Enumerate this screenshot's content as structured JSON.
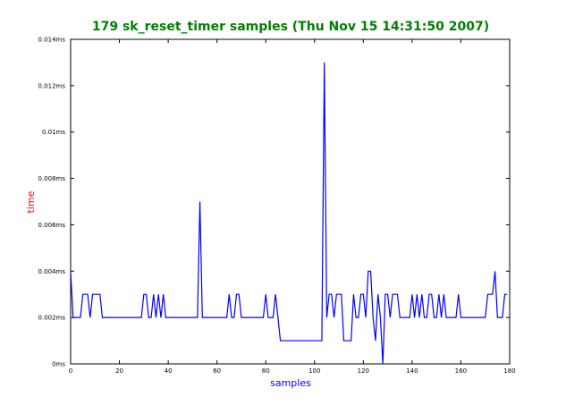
{
  "chart_data": {
    "type": "line",
    "title": "179 sk_reset_timer samples (Thu Nov 15 14:31:50 2007)",
    "xlabel": "samples",
    "ylabel": "time",
    "xlim": [
      0,
      180
    ],
    "ylim": [
      0,
      0.014
    ],
    "x_ticks": [
      0,
      20,
      40,
      60,
      80,
      100,
      120,
      140,
      160,
      180
    ],
    "x_tick_labels": [
      "0",
      "20",
      "40",
      "60",
      "80",
      "100",
      "120",
      "140",
      "160",
      "180"
    ],
    "y_ticks": [
      0,
      0.002,
      0.004,
      0.006,
      0.008,
      0.01,
      0.012,
      0.014
    ],
    "y_tick_labels": [
      "0ms",
      "0.002ms",
      "0.004ms",
      "0.006ms",
      "0.008ms",
      "0.01ms",
      "0.012ms",
      "0.014ms"
    ],
    "grid": false,
    "series": [
      {
        "color": "#0000ff",
        "values": [
          0.004,
          0.002,
          0.002,
          0.002,
          0.002,
          0.003,
          0.003,
          0.003,
          0.002,
          0.003,
          0.003,
          0.003,
          0.003,
          0.002,
          0.002,
          0.002,
          0.002,
          0.002,
          0.002,
          0.002,
          0.002,
          0.002,
          0.002,
          0.002,
          0.002,
          0.002,
          0.002,
          0.002,
          0.002,
          0.002,
          0.003,
          0.003,
          0.002,
          0.002,
          0.003,
          0.002,
          0.003,
          0.002,
          0.003,
          0.002,
          0.002,
          0.002,
          0.002,
          0.002,
          0.002,
          0.002,
          0.002,
          0.002,
          0.002,
          0.002,
          0.002,
          0.002,
          0.002,
          0.007,
          0.002,
          0.002,
          0.002,
          0.002,
          0.002,
          0.002,
          0.002,
          0.002,
          0.002,
          0.002,
          0.002,
          0.003,
          0.002,
          0.002,
          0.003,
          0.003,
          0.002,
          0.002,
          0.002,
          0.002,
          0.002,
          0.002,
          0.002,
          0.002,
          0.002,
          0.002,
          0.003,
          0.002,
          0.002,
          0.002,
          0.003,
          0.002,
          0.001,
          0.001,
          0.001,
          0.001,
          0.001,
          0.001,
          0.001,
          0.001,
          0.001,
          0.001,
          0.001,
          0.001,
          0.001,
          0.001,
          0.001,
          0.001,
          0.001,
          0.001,
          0.013,
          0.002,
          0.003,
          0.003,
          0.002,
          0.003,
          0.003,
          0.003,
          0.001,
          0.001,
          0.001,
          0.001,
          0.003,
          0.002,
          0.002,
          0.003,
          0.003,
          0.002,
          0.004,
          0.004,
          0.002,
          0.001,
          0.003,
          0.002,
          0.0,
          0.003,
          0.003,
          0.002,
          0.003,
          0.003,
          0.003,
          0.002,
          0.002,
          0.002,
          0.002,
          0.002,
          0.003,
          0.002,
          0.003,
          0.002,
          0.003,
          0.002,
          0.002,
          0.003,
          0.003,
          0.002,
          0.002,
          0.003,
          0.002,
          0.003,
          0.002,
          0.002,
          0.002,
          0.002,
          0.002,
          0.003,
          0.002,
          0.002,
          0.002,
          0.002,
          0.002,
          0.002,
          0.002,
          0.002,
          0.002,
          0.002,
          0.002,
          0.003,
          0.003,
          0.003,
          0.004,
          0.002,
          0.002,
          0.002,
          0.003,
          0.003
        ]
      }
    ]
  },
  "colors": {
    "title": "#008000",
    "xlabel": "#0000ff",
    "ylabel": "#ff0000",
    "line": "#0000ff",
    "axes": "#000000"
  }
}
